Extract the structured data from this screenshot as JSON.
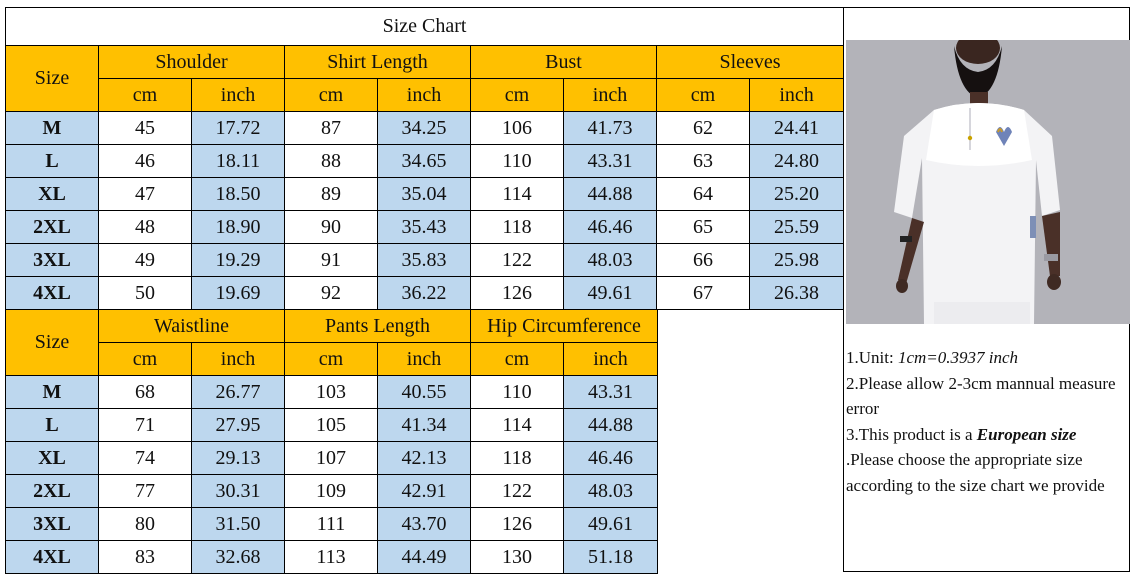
{
  "title": "Size Chart",
  "size_header": "Size",
  "unit_cm": "cm",
  "unit_inch": "inch",
  "top_table": {
    "columns": [
      "Shoulder",
      "Shirt Length",
      "Bust",
      "Sleeves"
    ],
    "rows": [
      {
        "size": "M",
        "values": [
          "45",
          "17.72",
          "87",
          "34.25",
          "106",
          "41.73",
          "62",
          "24.41"
        ]
      },
      {
        "size": "L",
        "values": [
          "46",
          "18.11",
          "88",
          "34.65",
          "110",
          "43.31",
          "63",
          "24.80"
        ]
      },
      {
        "size": "XL",
        "values": [
          "47",
          "18.50",
          "89",
          "35.04",
          "114",
          "44.88",
          "64",
          "25.20"
        ]
      },
      {
        "size": "2XL",
        "values": [
          "48",
          "18.90",
          "90",
          "35.43",
          "118",
          "46.46",
          "65",
          "25.59"
        ]
      },
      {
        "size": "3XL",
        "values": [
          "49",
          "19.29",
          "91",
          "35.83",
          "122",
          "48.03",
          "66",
          "25.98"
        ]
      },
      {
        "size": "4XL",
        "values": [
          "50",
          "19.69",
          "92",
          "36.22",
          "126",
          "49.61",
          "67",
          "26.38"
        ]
      }
    ]
  },
  "bottom_table": {
    "columns": [
      "Waistline",
      "Pants Length",
      "Hip Circumference"
    ],
    "rows": [
      {
        "size": "M",
        "values": [
          "68",
          "26.77",
          "103",
          "40.55",
          "110",
          "43.31"
        ]
      },
      {
        "size": "L",
        "values": [
          "71",
          "27.95",
          "105",
          "41.34",
          "114",
          "44.88"
        ]
      },
      {
        "size": "XL",
        "values": [
          "74",
          "29.13",
          "107",
          "42.13",
          "118",
          "46.46"
        ]
      },
      {
        "size": "2XL",
        "values": [
          "77",
          "30.31",
          "109",
          "42.91",
          "122",
          "48.03"
        ]
      },
      {
        "size": "3XL",
        "values": [
          "80",
          "31.50",
          "111",
          "43.70",
          "126",
          "49.61"
        ]
      },
      {
        "size": "4XL",
        "values": [
          "83",
          "32.68",
          "113",
          "44.49",
          "130",
          "51.18"
        ]
      }
    ]
  },
  "notes": {
    "unit_prefix": "1.Unit: ",
    "unit_value": "1cm=0.3937 inch",
    "error_note": "2.Please allow 2-3cm mannual measure error",
    "product_prefix": "3.This product is a ",
    "product_emphasis": "European size",
    "product_suffix": " .Please choose the appropriate size according to the size chart we provide"
  },
  "colors": {
    "header_bg": "#ffc000",
    "blue_cell_bg": "#bdd7ee",
    "photo_bg": "#b9b9bf"
  },
  "photo": {
    "subject": "man-in-white-embroidered-tunic"
  }
}
